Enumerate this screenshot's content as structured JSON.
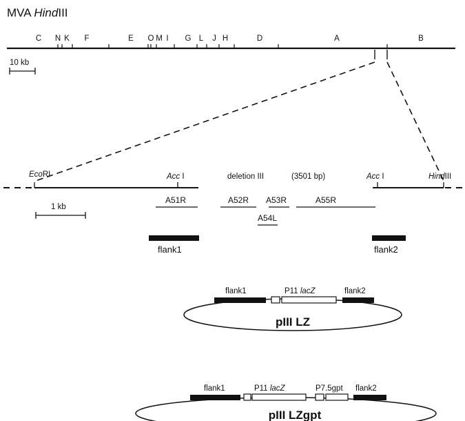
{
  "title": {
    "prefix": "MVA ",
    "enzyme": "Hind",
    "suffix": "III"
  },
  "genome_segments": [
    "C",
    "N",
    "K",
    "F",
    "E",
    "O",
    "M",
    "I",
    "G",
    "L",
    "J",
    "H",
    "D",
    "A",
    "B"
  ],
  "scale_top": "10 kb",
  "scale_detail": "1 kb",
  "detail": {
    "ecori_italic": "Eco",
    "ecori_rest": "RI",
    "acc_italic": "Acc",
    "acc_rest": " I",
    "deletion_label": "deletion III",
    "deletion_size": "(3501 bp)",
    "hind_italic": "Hind",
    "hind_rest": "III"
  },
  "genes": [
    "A51R",
    "A52R",
    "A53R",
    "A54L",
    "A55R"
  ],
  "flanks": {
    "flank1": "flank1",
    "flank2": "flank2"
  },
  "plasmid1": {
    "flank1": "flank1",
    "promoter": "P11 ",
    "gene": "lacZ",
    "flank2": "flank2",
    "name": "pIII LZ"
  },
  "plasmid2": {
    "flank1": "flank1",
    "promoter": "P11 ",
    "gene": "lacZ",
    "marker": "P7.5gpt",
    "flank2": "flank2",
    "name": "pIII LZgpt"
  }
}
